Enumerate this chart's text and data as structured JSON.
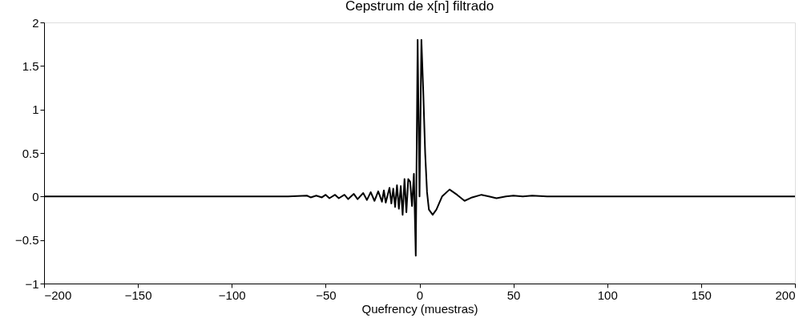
{
  "chart_data": {
    "type": "line",
    "title": "Cepstrum de x[n] filtrado",
    "xlabel": "Quefrency (muestras)",
    "x": [
      -200,
      -70,
      -60,
      -58,
      -55,
      -52,
      -50,
      -48,
      -45,
      -43,
      -40,
      -38,
      -35,
      -33,
      -30,
      -28,
      -26,
      -24,
      -22,
      -20,
      -19,
      -18,
      -16,
      -15,
      -14,
      -13,
      -12,
      -11,
      -10,
      -9,
      -8,
      -7,
      -6,
      -5,
      -4,
      -3,
      -2,
      -1,
      0,
      1,
      2,
      3,
      4,
      5,
      7,
      9,
      12,
      16,
      20,
      24,
      28,
      33,
      37,
      41,
      46,
      50,
      55,
      60,
      68,
      200
    ],
    "series": [
      {
        "color": "#000000",
        "values": [
          0,
          0,
          0.01,
          -0.01,
          0.01,
          -0.01,
          0.02,
          -0.02,
          0.02,
          -0.02,
          0.02,
          -0.03,
          0.03,
          -0.03,
          0.04,
          -0.04,
          0.05,
          -0.05,
          0.06,
          -0.06,
          0.07,
          -0.07,
          0.1,
          -0.08,
          0.09,
          -0.12,
          0.13,
          -0.14,
          0.12,
          -0.21,
          0.2,
          -0.18,
          0.2,
          0.17,
          -0.11,
          0.26,
          -0.68,
          1.8,
          0,
          1.8,
          1.2,
          0.5,
          0.05,
          -0.15,
          -0.21,
          -0.15,
          0,
          0.08,
          0.02,
          -0.05,
          -0.01,
          0.02,
          0,
          -0.02,
          0,
          0.01,
          0,
          0.01,
          0,
          0
        ]
      }
    ],
    "xlim": [
      -200,
      200
    ],
    "xticks": [
      -200,
      -150,
      -100,
      -50,
      0,
      50,
      100,
      150,
      200
    ],
    "ylim": [
      -1,
      2
    ],
    "yticks": [
      -1,
      -0.5,
      0,
      0.5,
      1,
      1.5,
      2
    ],
    "grid": false,
    "marker": "none",
    "line_style": "solid"
  }
}
